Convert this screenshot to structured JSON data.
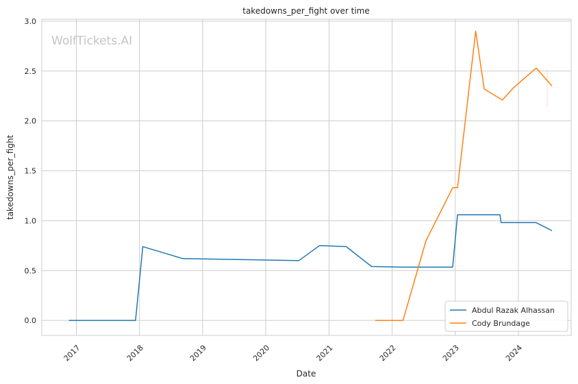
{
  "watermark": "WolfTickets.AI",
  "chart_data": {
    "type": "line",
    "title": "takedowns_per_fight over time",
    "xlabel": "Date",
    "ylabel": "takedowns_per_fight",
    "xlim": [
      "2016-06-15",
      "2024-11-01"
    ],
    "ylim": [
      -0.15,
      3.02
    ],
    "x_ticks": [
      "2017",
      "2018",
      "2019",
      "2020",
      "2021",
      "2022",
      "2023",
      "2024"
    ],
    "y_ticks": [
      "0.0",
      "0.5",
      "1.0",
      "1.5",
      "2.0",
      "2.5",
      "3.0"
    ],
    "grid": true,
    "legend_position": "lower-right",
    "series": [
      {
        "name": "Abdul Razak Alhassan",
        "color": "#1f77b4",
        "points": [
          [
            "2016-11-19",
            0.0
          ],
          [
            "2017-12-09",
            0.0
          ],
          [
            "2018-01-20",
            0.74
          ],
          [
            "2018-09-08",
            0.62
          ],
          [
            "2020-07-11",
            0.6
          ],
          [
            "2020-11-07",
            0.75
          ],
          [
            "2021-04-10",
            0.74
          ],
          [
            "2021-09-04",
            0.54
          ],
          [
            "2022-03-01",
            0.535
          ],
          [
            "2022-12-17",
            0.535
          ],
          [
            "2023-01-14",
            1.06
          ],
          [
            "2023-09-16",
            1.06
          ],
          [
            "2023-09-23",
            0.98
          ],
          [
            "2024-04-13",
            0.98
          ],
          [
            "2024-07-13",
            0.9
          ]
        ]
      },
      {
        "name": "Cody Brundage",
        "color": "#ff7f0e",
        "points": [
          [
            "2021-09-25",
            0.0
          ],
          [
            "2022-03-05",
            0.0
          ],
          [
            "2022-07-16",
            0.8
          ],
          [
            "2022-12-17",
            1.33
          ],
          [
            "2023-01-14",
            1.33
          ],
          [
            "2023-04-29",
            2.9
          ],
          [
            "2023-06-17",
            2.32
          ],
          [
            "2023-09-30",
            2.21
          ],
          [
            "2023-12-02",
            2.33
          ],
          [
            "2024-04-13",
            2.53
          ],
          [
            "2024-07-13",
            2.35
          ]
        ]
      }
    ]
  }
}
